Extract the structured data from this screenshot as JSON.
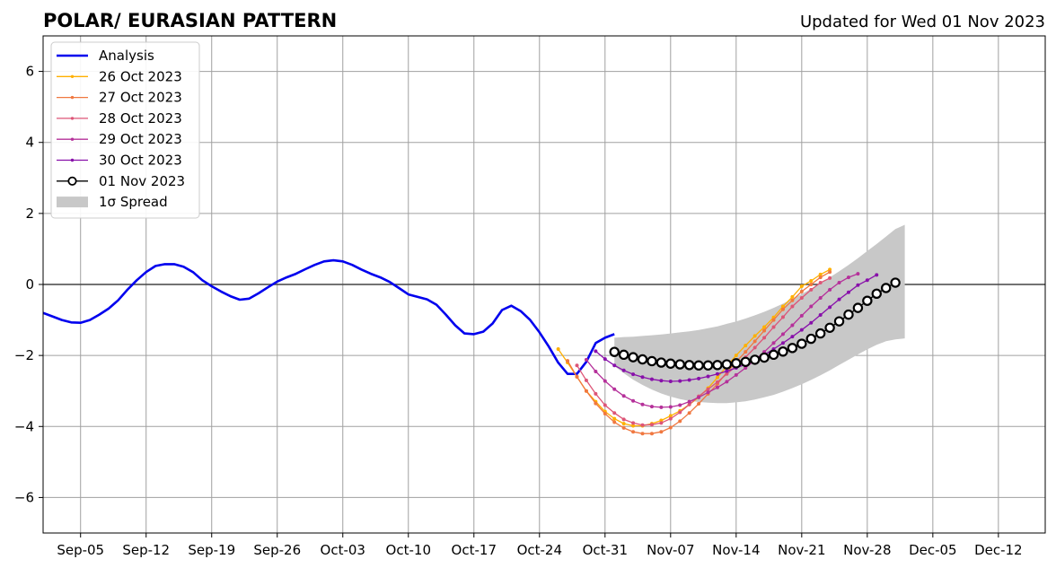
{
  "chart_data": {
    "type": "line",
    "title": "POLAR/ EURASIAN  PATTERN",
    "subtitle": "Updated for Wed 01 Nov 2023",
    "xlabel": "",
    "ylabel": "",
    "x_range": [
      "2023-09-01",
      "2023-12-17"
    ],
    "ylim": [
      -7,
      7
    ],
    "grid": true,
    "legend_position": "top-left",
    "x_ticks": [
      {
        "date": "2023-09-05",
        "label": "Sep-05"
      },
      {
        "date": "2023-09-12",
        "label": "Sep-12"
      },
      {
        "date": "2023-09-19",
        "label": "Sep-19"
      },
      {
        "date": "2023-09-26",
        "label": "Sep-26"
      },
      {
        "date": "2023-10-03",
        "label": "Oct-03"
      },
      {
        "date": "2023-10-10",
        "label": "Oct-10"
      },
      {
        "date": "2023-10-17",
        "label": "Oct-17"
      },
      {
        "date": "2023-10-24",
        "label": "Oct-24"
      },
      {
        "date": "2023-10-31",
        "label": "Oct-31"
      },
      {
        "date": "2023-11-07",
        "label": "Nov-07"
      },
      {
        "date": "2023-11-14",
        "label": "Nov-14"
      },
      {
        "date": "2023-11-21",
        "label": "Nov-21"
      },
      {
        "date": "2023-11-28",
        "label": "Nov-28"
      },
      {
        "date": "2023-12-05",
        "label": "Dec-05"
      },
      {
        "date": "2023-12-12",
        "label": "Dec-12"
      }
    ],
    "y_ticks": [
      {
        "value": 6,
        "label": "6"
      },
      {
        "value": 4,
        "label": "4"
      },
      {
        "value": 2,
        "label": "2"
      },
      {
        "value": 0,
        "label": "0"
      },
      {
        "value": -2,
        "label": "−2"
      },
      {
        "value": -4,
        "label": "−4"
      },
      {
        "value": -6,
        "label": "−6"
      }
    ],
    "analysis": {
      "name": "Analysis",
      "color": "#0000ee",
      "start_date": "2023-09-01",
      "values": [
        -0.8,
        -0.9,
        -1.0,
        -1.07,
        -1.08,
        -1.0,
        -0.85,
        -0.68,
        -0.45,
        -0.15,
        0.12,
        0.35,
        0.52,
        0.57,
        0.57,
        0.5,
        0.35,
        0.12,
        -0.05,
        -0.2,
        -0.33,
        -0.43,
        -0.4,
        -0.25,
        -0.08,
        0.08,
        0.2,
        0.3,
        0.43,
        0.55,
        0.65,
        0.68,
        0.65,
        0.55,
        0.42,
        0.3,
        0.2,
        0.07,
        -0.1,
        -0.28,
        -0.35,
        -0.42,
        -0.57,
        -0.85,
        -1.15,
        -1.38,
        -1.4,
        -1.33,
        -1.1,
        -0.72,
        -0.6,
        -0.75,
        -1.0,
        -1.35,
        -1.75,
        -2.2,
        -2.52,
        -2.52,
        -2.18,
        -1.65,
        -1.5,
        -1.4
      ]
    },
    "forecasts": [
      {
        "name": "26 Oct 2023",
        "color": "#ffb000",
        "start_date": "2023-10-26",
        "values": [
          -1.82,
          -2.2,
          -2.6,
          -3.0,
          -3.3,
          -3.58,
          -3.78,
          -3.92,
          -3.98,
          -3.98,
          -3.92,
          -3.83,
          -3.7,
          -3.56,
          -3.38,
          -3.18,
          -2.92,
          -2.62,
          -2.3,
          -2.0,
          -1.72,
          -1.45,
          -1.2,
          -0.93,
          -0.62,
          -0.35,
          -0.05,
          0.1,
          0.28,
          0.42
        ]
      },
      {
        "name": "27 Oct 2023",
        "color": "#f07840",
        "start_date": "2023-10-27",
        "values": [
          -2.15,
          -2.6,
          -3.0,
          -3.35,
          -3.64,
          -3.88,
          -4.04,
          -4.15,
          -4.2,
          -4.2,
          -4.15,
          -4.03,
          -3.85,
          -3.62,
          -3.36,
          -3.08,
          -2.8,
          -2.48,
          -2.18,
          -1.9,
          -1.6,
          -1.3,
          -1.0,
          -0.7,
          -0.45,
          -0.2,
          0.0,
          0.2,
          0.35
        ]
      },
      {
        "name": "28 Oct 2023",
        "color": "#dd5577",
        "start_date": "2023-10-28",
        "values": [
          -2.28,
          -2.7,
          -3.08,
          -3.4,
          -3.62,
          -3.8,
          -3.9,
          -3.96,
          -3.95,
          -3.9,
          -3.78,
          -3.6,
          -3.38,
          -3.15,
          -2.95,
          -2.75,
          -2.52,
          -2.3,
          -2.05,
          -1.78,
          -1.5,
          -1.2,
          -0.92,
          -0.62,
          -0.38,
          -0.15,
          0.05,
          0.18
        ]
      },
      {
        "name": "29 Oct 2023",
        "color": "#b5309a",
        "start_date": "2023-10-29",
        "values": [
          -2.12,
          -2.45,
          -2.72,
          -2.95,
          -3.14,
          -3.28,
          -3.38,
          -3.44,
          -3.46,
          -3.45,
          -3.4,
          -3.3,
          -3.18,
          -3.04,
          -2.9,
          -2.74,
          -2.55,
          -2.35,
          -2.13,
          -1.9,
          -1.65,
          -1.4,
          -1.15,
          -0.88,
          -0.62,
          -0.38,
          -0.15,
          0.05,
          0.2,
          0.3
        ]
      },
      {
        "name": "30 Oct 2023",
        "color": "#8810aa",
        "start_date": "2023-10-30",
        "values": [
          -1.88,
          -2.1,
          -2.28,
          -2.42,
          -2.53,
          -2.61,
          -2.67,
          -2.71,
          -2.73,
          -2.72,
          -2.69,
          -2.65,
          -2.59,
          -2.52,
          -2.44,
          -2.35,
          -2.25,
          -2.12,
          -1.98,
          -1.82,
          -1.65,
          -1.47,
          -1.28,
          -1.08,
          -0.86,
          -0.64,
          -0.42,
          -0.22,
          -0.02,
          0.12,
          0.27
        ]
      }
    ],
    "latest_forecast": {
      "name": "01 Nov 2023",
      "color": "#000000",
      "start_date": "2023-11-01",
      "values": [
        -1.9,
        -1.98,
        -2.05,
        -2.11,
        -2.16,
        -2.2,
        -2.23,
        -2.25,
        -2.27,
        -2.28,
        -2.28,
        -2.27,
        -2.25,
        -2.22,
        -2.18,
        -2.12,
        -2.06,
        -1.98,
        -1.89,
        -1.79,
        -1.67,
        -1.53,
        -1.38,
        -1.22,
        -1.04,
        -0.85,
        -0.66,
        -0.46,
        -0.26,
        -0.1,
        0.05
      ]
    },
    "spread": {
      "name": "1σ Spread",
      "color": "#c8c8c8",
      "start_date": "2023-11-01",
      "upper": [
        -1.5,
        -1.48,
        -1.47,
        -1.45,
        -1.43,
        -1.41,
        -1.38,
        -1.35,
        -1.32,
        -1.28,
        -1.23,
        -1.18,
        -1.11,
        -1.04,
        -0.96,
        -0.87,
        -0.77,
        -0.66,
        -0.54,
        -0.41,
        -0.27,
        -0.12,
        0.03,
        0.2,
        0.37,
        0.55,
        0.74,
        0.94,
        1.14,
        1.35,
        1.56,
        1.68
      ],
      "lower": [
        -2.3,
        -2.5,
        -2.68,
        -2.83,
        -2.96,
        -3.07,
        -3.16,
        -3.23,
        -3.28,
        -3.31,
        -3.33,
        -3.34,
        -3.34,
        -3.32,
        -3.29,
        -3.24,
        -3.18,
        -3.11,
        -3.02,
        -2.92,
        -2.81,
        -2.69,
        -2.56,
        -2.42,
        -2.27,
        -2.12,
        -1.97,
        -1.83,
        -1.7,
        -1.6,
        -1.55,
        -1.52
      ]
    },
    "legend": [
      "Analysis",
      "26 Oct 2023",
      "27 Oct 2023",
      "28 Oct 2023",
      "29 Oct 2023",
      "30 Oct 2023",
      "01 Nov 2023",
      "1σ Spread"
    ]
  }
}
